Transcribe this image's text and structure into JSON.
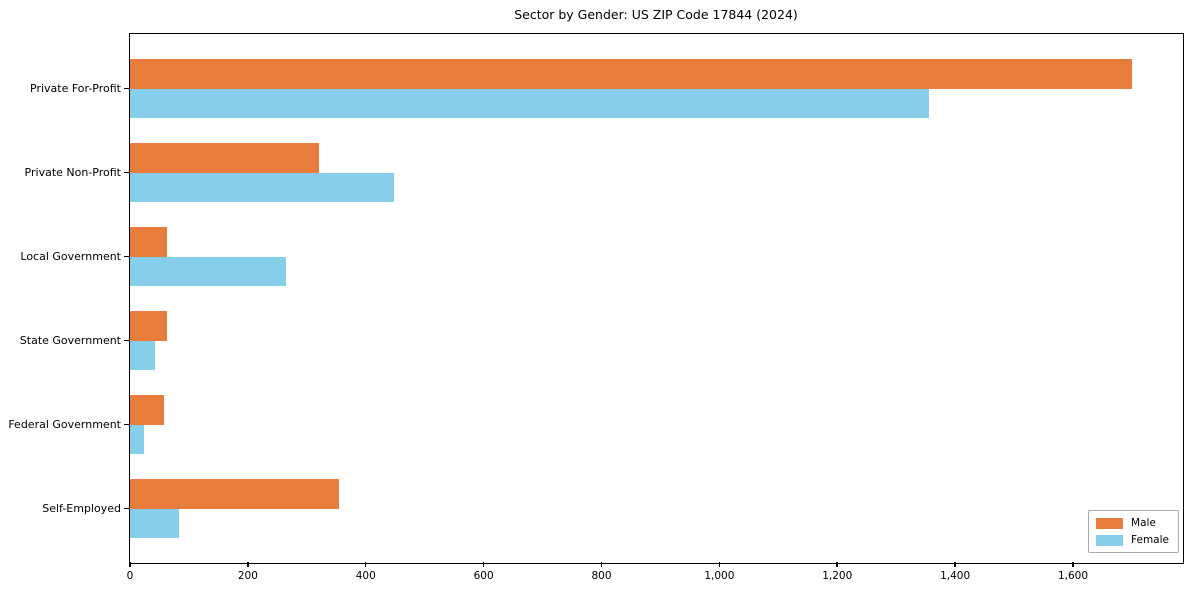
{
  "chart_data": {
    "type": "bar",
    "orientation": "horizontal",
    "title": "Sector by Gender: US ZIP Code 17844 (2024)",
    "xlabel": "",
    "ylabel": "",
    "categories": [
      "Private For-Profit",
      "Private Non-Profit",
      "Local Government",
      "State Government",
      "Federal Government",
      "Self-Employed"
    ],
    "series": [
      {
        "name": "Male",
        "color": "#E87D3B",
        "values": [
          1700,
          320,
          62,
          62,
          57,
          355
        ]
      },
      {
        "name": "Female",
        "color": "#87CEEB",
        "values": [
          1356,
          448,
          265,
          42,
          23,
          83
        ]
      }
    ],
    "xlim": [
      0,
      1785
    ],
    "xticks": [
      0,
      200,
      400,
      600,
      800,
      1000,
      1200,
      1400,
      1600
    ],
    "xtick_labels": [
      "0",
      "200",
      "400",
      "600",
      "800",
      "1,000",
      "1,200",
      "1,400",
      "1,600"
    ],
    "grid": false,
    "legend": {
      "position": "lower right",
      "entries": [
        "Male",
        "Female"
      ]
    }
  }
}
